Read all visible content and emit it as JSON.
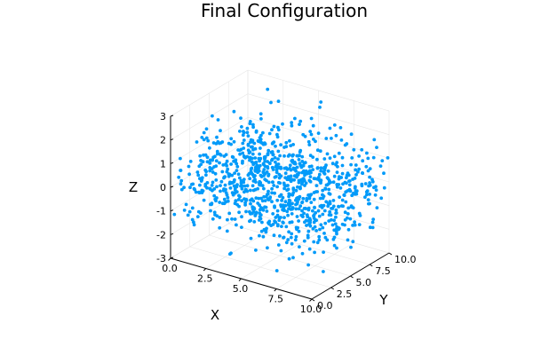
{
  "chart_data": {
    "type": "scatter",
    "title": "Final Configuration",
    "xlabel": "X",
    "ylabel": "Y",
    "zlabel": "Z",
    "xlim": [
      0,
      10
    ],
    "ylim": [
      0,
      10
    ],
    "zlim": [
      -3,
      3
    ],
    "x_ticks": [
      "0.0",
      "2.5",
      "5.0",
      "7.5",
      "10.0"
    ],
    "y_ticks": [
      "0.0",
      "2.5",
      "5.0",
      "7.5",
      "10.0"
    ],
    "z_ticks": [
      "-3",
      "-2",
      "-1",
      "0",
      "1",
      "2",
      "3"
    ],
    "x_tick_values": [
      0,
      2.5,
      5,
      7.5,
      10
    ],
    "y_tick_values": [
      0,
      2.5,
      5,
      7.5,
      10
    ],
    "z_tick_values": [
      -3,
      -2,
      -1,
      0,
      1,
      2,
      3
    ],
    "grid": true,
    "legend": "none",
    "n_points": 1000,
    "distribution": "x and y uniform on [0, 10], z roughly normal with mean 0 and standard deviation 1",
    "marker_color": "#009af9"
  }
}
